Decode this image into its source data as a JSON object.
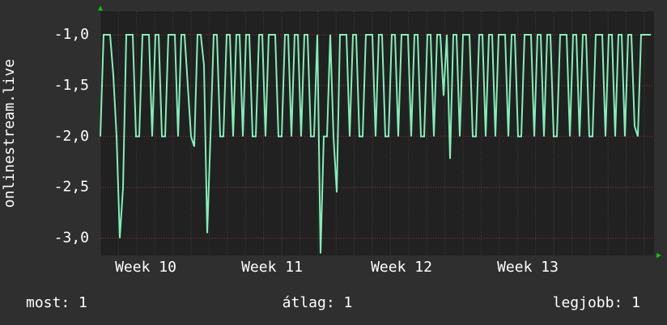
{
  "chart_data": {
    "type": "line",
    "y_label": "onlinestream.live",
    "categories": [
      null,
      null,
      null,
      null,
      null,
      null,
      null,
      null,
      null,
      null,
      null,
      null,
      null,
      null,
      "Week 10",
      null,
      null,
      null,
      null,
      null,
      null,
      null,
      null,
      null,
      null,
      null,
      null,
      null,
      null,
      null,
      null,
      null,
      null,
      null,
      null,
      null,
      null,
      null,
      null,
      null,
      null,
      null,
      null,
      null,
      null,
      null,
      null,
      null,
      null,
      null,
      null,
      null,
      null,
      "Week 11",
      null,
      null,
      null,
      null,
      null,
      null,
      null,
      null,
      null,
      null,
      null,
      null,
      null,
      null,
      null,
      null,
      null,
      null,
      null,
      null,
      null,
      null,
      null,
      null,
      null,
      null,
      null,
      null,
      null,
      null,
      null,
      null,
      null,
      null,
      null,
      null,
      null,
      null,
      null,
      "Week 12",
      null,
      null,
      null,
      null,
      null,
      null,
      null,
      null,
      null,
      null,
      null,
      null,
      null,
      null,
      null,
      null,
      null,
      null,
      null,
      null,
      null,
      null,
      null,
      null,
      null,
      null,
      null,
      null,
      null,
      null,
      null,
      null,
      null,
      null,
      null,
      null,
      null,
      null,
      "Week 13",
      null,
      null,
      null,
      null,
      null,
      null,
      null,
      null,
      null,
      null,
      null,
      null,
      null,
      null,
      null,
      null,
      null,
      null,
      null,
      null,
      null,
      null,
      null,
      null,
      null,
      null,
      null,
      null,
      null,
      null,
      null,
      null,
      null,
      null,
      null,
      null,
      null,
      null
    ],
    "series": [
      {
        "name": "onlinestream.live",
        "color": "#80f0b8",
        "values": [
          -2,
          -1,
          -1,
          -1,
          -1.4,
          -2,
          -3,
          -2.5,
          -1,
          -1,
          -1,
          -2,
          -2,
          -1,
          -1,
          -1,
          -2,
          -1,
          -1,
          -2,
          -2,
          -1,
          -1,
          -1,
          -2,
          -1,
          -1,
          -1.5,
          -2,
          -2.1,
          -1,
          -1,
          -1.3,
          -2.95,
          -2,
          -1,
          -1,
          -2,
          -2,
          -1,
          -1,
          -2,
          -1,
          -1,
          -2,
          -1,
          -1,
          -2,
          -2,
          -1,
          -1,
          -2,
          -1,
          -1,
          -1,
          -2,
          -2,
          -1,
          -1,
          -2,
          -1,
          -1,
          -2,
          -1,
          -1,
          -2,
          -2,
          -1,
          -3.15,
          -2,
          -2,
          -1,
          -2,
          -2.55,
          -1,
          -1,
          -1,
          -2,
          -1,
          -1,
          -2,
          -2,
          -1,
          -1,
          -1,
          -2,
          -1,
          -1,
          -2,
          -2,
          -1,
          -1,
          -2,
          -1,
          -1,
          -1,
          -2,
          -1,
          -1,
          -2,
          -2,
          -1,
          -1,
          -2,
          -1,
          -1,
          -1.6,
          -1,
          -2.22,
          -1,
          -1,
          -2,
          -1,
          -1,
          -1,
          -2,
          -2,
          -1,
          -1,
          -2,
          -1,
          -1,
          -2,
          -1,
          -1,
          -1,
          -2,
          -1,
          -1,
          -2,
          -2,
          -1,
          -1,
          -1,
          -2,
          -1,
          -1,
          -2,
          -1,
          -1,
          -2,
          -2,
          -1,
          -1,
          -1,
          -2,
          -1,
          -1,
          -2,
          -1,
          -1,
          -2,
          -2,
          -1,
          -1,
          -1,
          -2,
          -1,
          -1,
          -2,
          -1,
          -1,
          -2,
          -1,
          -1,
          -1.9,
          -2,
          -1,
          -1,
          -1,
          -1
        ]
      }
    ],
    "ylim": [
      -3.17,
      -0.77
    ],
    "yticks": [
      {
        "value": -1,
        "label": "-1,0"
      },
      {
        "value": -1.5,
        "label": "-1,5"
      },
      {
        "value": -2,
        "label": "-2,0"
      },
      {
        "value": -2.5,
        "label": "-2,5"
      },
      {
        "value": -3,
        "label": "-3,0"
      }
    ],
    "grid": true,
    "stats": [
      "most: 1",
      "átlag: 1",
      "legjobb: 1"
    ]
  }
}
